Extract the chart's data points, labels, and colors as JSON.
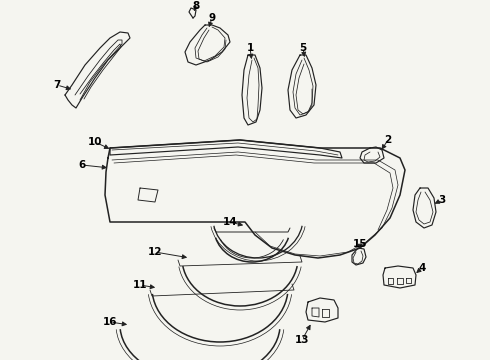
{
  "bg_color": "#f5f5f0",
  "lc": "#2a2a2a",
  "lw": 0.9,
  "figsize": [
    4.9,
    3.6
  ],
  "dpi": 100
}
